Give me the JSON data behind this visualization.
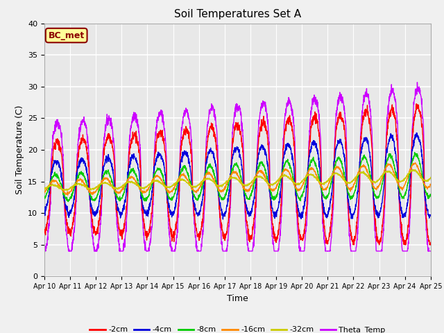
{
  "title": "Soil Temperatures Set A",
  "xlabel": "Time",
  "ylabel": "Soil Temperature (C)",
  "ylim": [
    0,
    40
  ],
  "n_days": 15,
  "annotation": "BC_met",
  "series_colors": {
    "-2cm": "#ff0000",
    "-4cm": "#0000dd",
    "-8cm": "#00cc00",
    "-16cm": "#ff8800",
    "-32cm": "#cccc00",
    "Theta_Temp": "#cc00ff"
  },
  "legend_colors": [
    "#ff0000",
    "#0000dd",
    "#00cc00",
    "#ff8800",
    "#cccc00",
    "#cc00ff"
  ],
  "legend_labels": [
    "-2cm",
    "-4cm",
    "-8cm",
    "-16cm",
    "-32cm",
    "Theta_Temp"
  ],
  "bg_color": "#e8e8e8",
  "grid_color": "#ffffff",
  "n_pts_per_day": 144
}
